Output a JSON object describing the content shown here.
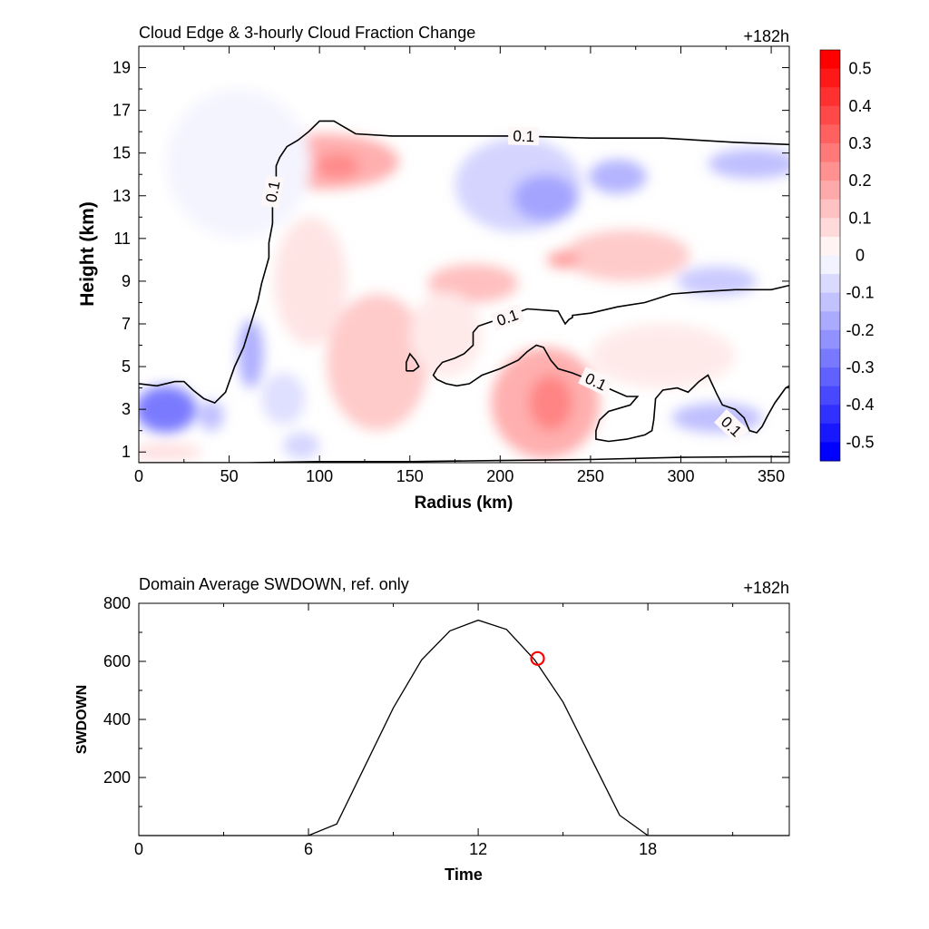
{
  "chart_data": [
    {
      "type": "heatmap",
      "title": "Cloud Edge & 3-hourly Cloud Fraction Change",
      "time_label": "+182h",
      "xlabel": "Radius (km)",
      "ylabel": "Height (km)",
      "xlim": [
        0,
        360
      ],
      "ylim": [
        0.5,
        20
      ],
      "xticks": [
        0,
        50,
        100,
        150,
        200,
        250,
        300,
        350
      ],
      "yticks": [
        1,
        3,
        5,
        7,
        9,
        11,
        13,
        15,
        17,
        19
      ],
      "colorbar": {
        "range": [
          -0.55,
          0.55
        ],
        "step": 0.05,
        "labels": [
          "0.5",
          "0.4",
          "0.3",
          "0.2",
          "0.1",
          "0",
          "-0.1",
          "-0.2",
          "-0.3",
          "-0.4",
          "-0.5"
        ],
        "high_color": "#ff0000",
        "low_color": "#0000ff",
        "mid_color": "#ffffff"
      },
      "regions": [
        {
          "cx": 15,
          "cy": 3.0,
          "rx": 17,
          "ry": 1.1,
          "v": -0.25
        },
        {
          "cx": 40,
          "cy": 2.7,
          "rx": 7,
          "ry": 0.7,
          "v": -0.12
        },
        {
          "cx": 62,
          "cy": 5.6,
          "rx": 7,
          "ry": 1.6,
          "v": -0.15
        },
        {
          "cx": 102,
          "cy": 14.6,
          "rx": 42,
          "ry": 1.3,
          "v": 0.15
        },
        {
          "cx": 110,
          "cy": 14.4,
          "rx": 12,
          "ry": 0.6,
          "v": 0.22
        },
        {
          "cx": 135,
          "cy": 4.8,
          "rx": 15,
          "ry": 2.1,
          "v": 0.2
        },
        {
          "cx": 132,
          "cy": 5.2,
          "rx": 28,
          "ry": 3.2,
          "v": 0.1
        },
        {
          "cx": 225,
          "cy": 3.3,
          "rx": 30,
          "ry": 2.6,
          "v": 0.15
        },
        {
          "cx": 228,
          "cy": 3.3,
          "rx": 12,
          "ry": 1.3,
          "v": 0.23
        },
        {
          "cx": 210,
          "cy": 13.5,
          "rx": 35,
          "ry": 2.2,
          "v": -0.08
        },
        {
          "cx": 225,
          "cy": 12.9,
          "rx": 18,
          "ry": 1.1,
          "v": -0.17
        },
        {
          "cx": 265,
          "cy": 13.9,
          "rx": 16,
          "ry": 0.8,
          "v": -0.14
        },
        {
          "cx": 340,
          "cy": 14.5,
          "rx": 25,
          "ry": 0.7,
          "v": -0.12
        },
        {
          "cx": 270,
          "cy": 10.2,
          "rx": 35,
          "ry": 1.2,
          "v": 0.1
        },
        {
          "cx": 235,
          "cy": 10.0,
          "rx": 9,
          "ry": 0.4,
          "v": 0.18
        },
        {
          "cx": 185,
          "cy": 8.9,
          "rx": 25,
          "ry": 0.9,
          "v": 0.12
        },
        {
          "cx": 320,
          "cy": 9.0,
          "rx": 22,
          "ry": 0.7,
          "v": -0.1
        },
        {
          "cx": 320,
          "cy": 2.6,
          "rx": 25,
          "ry": 0.7,
          "v": -0.12
        },
        {
          "cx": 95,
          "cy": 9.0,
          "rx": 20,
          "ry": 3.0,
          "v": 0.05
        },
        {
          "cx": 170,
          "cy": 6.5,
          "rx": 20,
          "ry": 2.0,
          "v": 0.04
        },
        {
          "cx": 80,
          "cy": 3.5,
          "rx": 12,
          "ry": 1.2,
          "v": -0.06
        },
        {
          "cx": 90,
          "cy": 1.3,
          "rx": 10,
          "ry": 0.6,
          "v": -0.08
        },
        {
          "cx": 15,
          "cy": 1.0,
          "rx": 20,
          "ry": 0.4,
          "v": 0.06
        },
        {
          "cx": 290,
          "cy": 5.5,
          "rx": 40,
          "ry": 1.5,
          "v": 0.04
        },
        {
          "cx": 55,
          "cy": 14.5,
          "rx": 40,
          "ry": 3.5,
          "v": -0.02
        }
      ],
      "contours": [
        {
          "level": "0.1",
          "points": [
            [
              0,
              4.2
            ],
            [
              10,
              4.1
            ],
            [
              20,
              4.3
            ],
            [
              25,
              4.3
            ],
            [
              30,
              3.9
            ],
            [
              36,
              3.5
            ],
            [
              42,
              3.3
            ],
            [
              48,
              3.8
            ],
            [
              53,
              5.0
            ],
            [
              58,
              5.9
            ],
            [
              62,
              7.0
            ],
            [
              66,
              8.1
            ],
            [
              68,
              8.9
            ],
            [
              70,
              9.5
            ],
            [
              72,
              10.1
            ],
            [
              72,
              10.8
            ],
            [
              74,
              11.7
            ],
            [
              74,
              12.7
            ],
            [
              76,
              13.6
            ],
            [
              76,
              14.4
            ],
            [
              78,
              14.8
            ],
            [
              82,
              15.3
            ],
            [
              88,
              15.6
            ],
            [
              94,
              16.0
            ],
            [
              100,
              16.5
            ],
            [
              108,
              16.5
            ],
            [
              114,
              16.2
            ],
            [
              120,
              15.9
            ],
            [
              140,
              15.8
            ],
            [
              170,
              15.8
            ],
            [
              210,
              15.8
            ],
            [
              250,
              15.7
            ],
            [
              290,
              15.7
            ],
            [
              330,
              15.5
            ],
            [
              360,
              15.4
            ]
          ],
          "label_at": [
            [
              74,
              13.2
            ],
            [
              213,
              15.8
            ]
          ]
        },
        {
          "level": "0.1",
          "points": [
            [
              360,
              8.8
            ],
            [
              350,
              8.6
            ],
            [
              330,
              8.6
            ],
            [
              310,
              8.5
            ],
            [
              295,
              8.4
            ],
            [
              280,
              8.0
            ],
            [
              265,
              7.8
            ],
            [
              250,
              7.5
            ],
            [
              240,
              7.4
            ],
            [
              240,
              7.3
            ],
            [
              238,
              7.2
            ],
            [
              236,
              7.0
            ],
            [
              234,
              7.3
            ],
            [
              232,
              7.6
            ],
            [
              215,
              7.7
            ],
            [
              205,
              7.4
            ],
            [
              195,
              7.1
            ],
            [
              188,
              6.9
            ],
            [
              185,
              6.6
            ],
            [
              185,
              6.0
            ],
            [
              180,
              5.6
            ],
            [
              175,
              5.4
            ],
            [
              168,
              5.2
            ],
            [
              165,
              4.9
            ],
            [
              163,
              4.6
            ],
            [
              165,
              4.4
            ],
            [
              170,
              4.2
            ],
            [
              176,
              4.1
            ],
            [
              183,
              4.2
            ],
            [
              190,
              4.6
            ],
            [
              200,
              4.9
            ],
            [
              210,
              5.3
            ],
            [
              215,
              5.7
            ],
            [
              220,
              6.0
            ],
            [
              224,
              5.9
            ],
            [
              228,
              5.3
            ],
            [
              232,
              4.9
            ],
            [
              240,
              4.7
            ],
            [
              252,
              4.3
            ],
            [
              262,
              3.9
            ],
            [
              270,
              3.6
            ],
            [
              276,
              3.6
            ],
            [
              272,
              3.2
            ],
            [
              260,
              2.9
            ],
            [
              255,
              2.5
            ],
            [
              253,
              2.0
            ],
            [
              253,
              1.6
            ],
            [
              260,
              1.5
            ],
            [
              270,
              1.6
            ],
            [
              280,
              1.8
            ],
            [
              284,
              2.0
            ],
            [
              285,
              2.5
            ],
            [
              286,
              3.5
            ],
            [
              290,
              3.9
            ],
            [
              298,
              4.0
            ],
            [
              304,
              3.8
            ],
            [
              310,
              4.3
            ],
            [
              315,
              4.6
            ],
            [
              320,
              3.7
            ],
            [
              323,
              3.2
            ],
            [
              330,
              3.0
            ],
            [
              335,
              2.6
            ],
            [
              338,
              2.0
            ],
            [
              342,
              1.9
            ],
            [
              345,
              2.2
            ],
            [
              348,
              2.7
            ],
            [
              352,
              3.3
            ],
            [
              358,
              4.0
            ],
            [
              360,
              4.1
            ]
          ],
          "label_at": [
            [
              204,
              7.3
            ],
            [
              253,
              4.3
            ],
            [
              328,
              2.2
            ]
          ]
        },
        {
          "level": "",
          "points": [
            [
              148,
              4.8
            ],
            [
              148,
              5.2
            ],
            [
              150,
              5.6
            ],
            [
              153,
              5.3
            ],
            [
              155,
              5.0
            ],
            [
              152,
              4.8
            ],
            [
              148,
              4.8
            ]
          ],
          "label_at": []
        },
        {
          "level": "",
          "points": [
            [
              0,
              0.5
            ],
            [
              60,
              0.5
            ],
            [
              100,
              0.55
            ],
            [
              150,
              0.55
            ],
            [
              200,
              0.6
            ],
            [
              250,
              0.65
            ],
            [
              300,
              0.75
            ],
            [
              340,
              0.78
            ],
            [
              360,
              0.78
            ]
          ],
          "label_at": []
        }
      ]
    },
    {
      "type": "line",
      "title": "Domain Average SWDOWN, ref. only",
      "time_label": "+182h",
      "xlabel": "Time",
      "ylabel": "SWDOWN",
      "xlim": [
        0,
        23
      ],
      "ylim": [
        0,
        800
      ],
      "xticks": [
        0,
        6,
        12,
        18
      ],
      "xminorticks": [
        3,
        9,
        15,
        21
      ],
      "yticks": [
        200,
        400,
        600,
        800
      ],
      "series": [
        {
          "x": [
            0,
            1,
            2,
            3,
            4,
            5,
            6,
            7,
            8,
            9,
            10,
            11,
            12,
            13,
            14,
            15,
            16,
            17,
            18,
            19,
            20,
            21,
            22,
            23
          ],
          "values": [
            0,
            0,
            0,
            0,
            0,
            0,
            0,
            40,
            240,
            440,
            605,
            705,
            742,
            710,
            605,
            460,
            265,
            70,
            0,
            0,
            0,
            0,
            0,
            0
          ],
          "color": "#000000"
        }
      ],
      "marker": {
        "x": 14.1,
        "y": 610,
        "color": "#ff0000"
      }
    }
  ]
}
